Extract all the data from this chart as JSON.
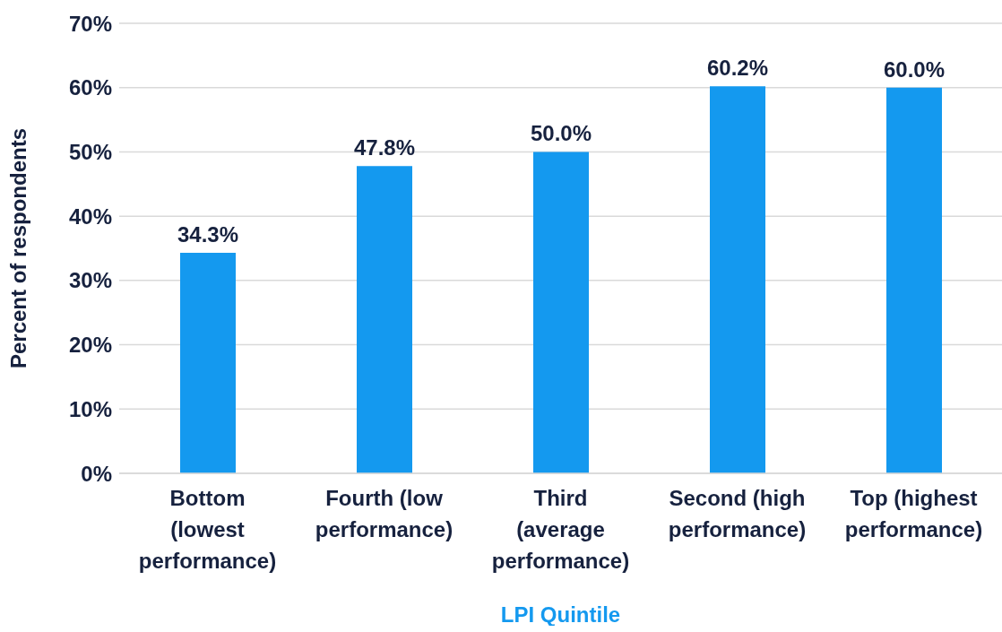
{
  "chart_data": {
    "type": "bar",
    "xlabel": "LPI Quintile",
    "ylabel": "Percent of respondents",
    "categories": [
      "Bottom (lowest performance)",
      "Fourth (low performance)",
      "Third (average performance)",
      "Second (high performance)",
      "Top (highest performance)"
    ],
    "values": [
      34.3,
      47.8,
      50.0,
      60.2,
      60.0
    ],
    "color": "#1499ef",
    "value_labels": [
      "34.3%",
      "47.8%",
      "50.0%",
      "60.2%",
      "60.0%"
    ],
    "ylim": [
      0,
      70
    ],
    "yticks": [
      {
        "value": 0,
        "label": "0%"
      },
      {
        "value": 10,
        "label": "10%"
      },
      {
        "value": 20,
        "label": "20%"
      },
      {
        "value": 30,
        "label": "30%"
      },
      {
        "value": 40,
        "label": "40%"
      },
      {
        "value": 50,
        "label": "50%"
      },
      {
        "value": 60,
        "label": "60%"
      },
      {
        "value": 70,
        "label": "70%"
      }
    ],
    "grid": "y",
    "legend": false
  }
}
